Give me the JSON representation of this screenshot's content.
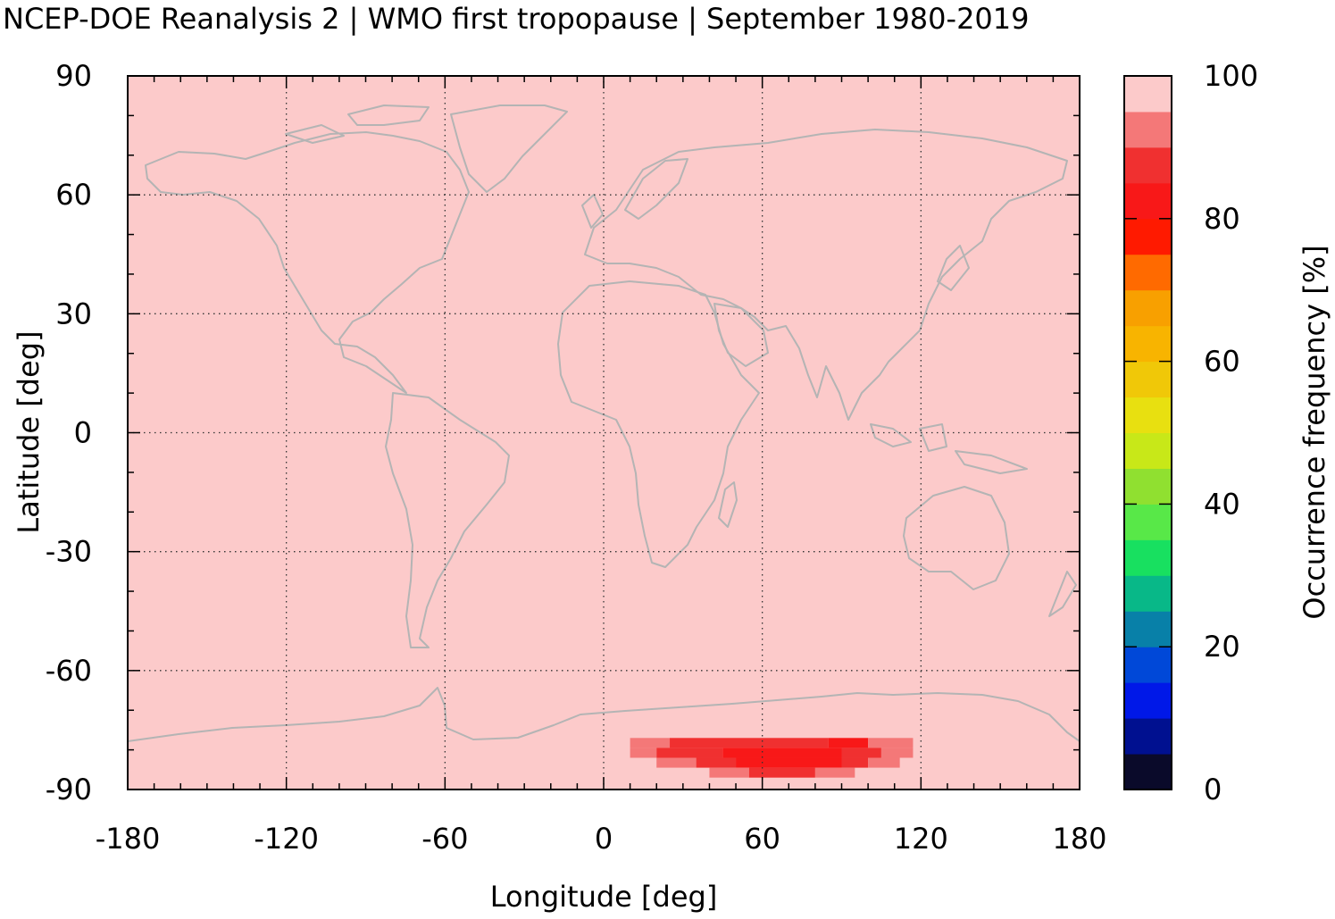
{
  "title": "NCEP-DOE Reanalysis 2 | WMO first tropopause | September 1980-2019",
  "chart_data": {
    "type": "heatmap",
    "projection": "equirectangular",
    "xlabel": "Longitude [deg]",
    "ylabel": "Latitude [deg]",
    "xlim": [
      -180,
      180
    ],
    "ylim": [
      -90,
      90
    ],
    "xticks": [
      -180,
      -120,
      -60,
      0,
      60,
      120,
      180
    ],
    "yticks": [
      90,
      60,
      30,
      0,
      -30,
      -60,
      -90
    ],
    "xtick_labels": [
      "-180",
      "-120",
      "-60",
      "0",
      "60",
      "120",
      "180"
    ],
    "ytick_labels": [
      "90",
      "60",
      "30",
      "0",
      "-30",
      "-60",
      "-90"
    ],
    "grid": true,
    "background_value": 100,
    "coastline_color": "#b4b4b4",
    "colorbar": {
      "label": "Occurrence frequency [%]",
      "range": [
        0,
        100
      ],
      "ticks": [
        0,
        20,
        40,
        60,
        80,
        100
      ],
      "tick_labels": [
        "0",
        "20",
        "40",
        "60",
        "80",
        "100"
      ],
      "colors": [
        "#0a0a2a",
        "#001090",
        "#0018e8",
        "#0048d8",
        "#0880a8",
        "#08b888",
        "#18e060",
        "#58e848",
        "#90e030",
        "#c8e818",
        "#e8e010",
        "#f0c808",
        "#f8b400",
        "#f8a000",
        "#ff6a00",
        "#ff1a00",
        "#f81818",
        "#f03030",
        "#f47878",
        "#fccaca"
      ]
    },
    "anomaly": {
      "region": "Antarctic interior, ~10E-120E, ~75S-85S",
      "value_range_percent": [
        85,
        95
      ],
      "rows": [
        {
          "lat": [
            -77,
            -79.5
          ],
          "lon": [
            [
              10,
              25,
              "#f47878"
            ],
            [
              25,
              85,
              "#f03030"
            ],
            [
              85,
              100,
              "#f81818"
            ],
            [
              100,
              117,
              "#f47878"
            ]
          ]
        },
        {
          "lat": [
            -79.5,
            -82
          ],
          "lon": [
            [
              10,
              20,
              "#f47878"
            ],
            [
              20,
              45,
              "#f03030"
            ],
            [
              45,
              90,
              "#f81818"
            ],
            [
              90,
              105,
              "#f03030"
            ],
            [
              105,
              117,
              "#f47878"
            ]
          ]
        },
        {
          "lat": [
            -82,
            -84.5
          ],
          "lon": [
            [
              20,
              35,
              "#f47878"
            ],
            [
              35,
              50,
              "#f03030"
            ],
            [
              50,
              90,
              "#f81818"
            ],
            [
              90,
              100,
              "#f03030"
            ],
            [
              100,
              112,
              "#f47878"
            ]
          ]
        },
        {
          "lat": [
            -84.5,
            -87
          ],
          "lon": [
            [
              40,
              55,
              "#f47878"
            ],
            [
              55,
              80,
              "#f03030"
            ],
            [
              80,
              95,
              "#f47878"
            ]
          ]
        }
      ]
    }
  }
}
